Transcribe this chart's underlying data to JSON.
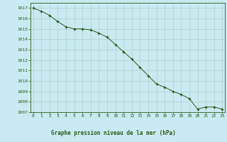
{
  "x": [
    0,
    1,
    2,
    3,
    4,
    5,
    6,
    7,
    8,
    9,
    10,
    11,
    12,
    13,
    14,
    15,
    16,
    17,
    18,
    19,
    20,
    21,
    22,
    23
  ],
  "y": [
    1017.0,
    1016.7,
    1016.3,
    1015.7,
    1015.2,
    1015.0,
    1015.0,
    1014.9,
    1014.6,
    1014.2,
    1013.5,
    1012.8,
    1012.1,
    1011.3,
    1010.5,
    1009.7,
    1009.4,
    1009.0,
    1008.7,
    1008.3,
    1007.3,
    1007.5,
    1007.5,
    1007.3
  ],
  "ylim": [
    1007,
    1017.5
  ],
  "yticks": [
    1007,
    1008,
    1009,
    1010,
    1011,
    1012,
    1013,
    1014,
    1015,
    1016,
    1017
  ],
  "xticks": [
    0,
    1,
    2,
    3,
    4,
    5,
    6,
    7,
    8,
    9,
    10,
    11,
    12,
    13,
    14,
    15,
    16,
    17,
    18,
    19,
    20,
    21,
    22,
    23
  ],
  "line_color": "#2d5a1b",
  "marker_color": "#2d5a1b",
  "bg_color": "#c8eaf0",
  "grid_color": "#aacccc",
  "xlabel": "Graphe pression niveau de la mer (hPa)",
  "xlabel_color": "#2d5a1b",
  "tick_color": "#2d5a1b",
  "axis_color": "#2d5a1b",
  "label_bar_color": "#c8eaf0",
  "xlim": [
    -0.3,
    23.3
  ]
}
